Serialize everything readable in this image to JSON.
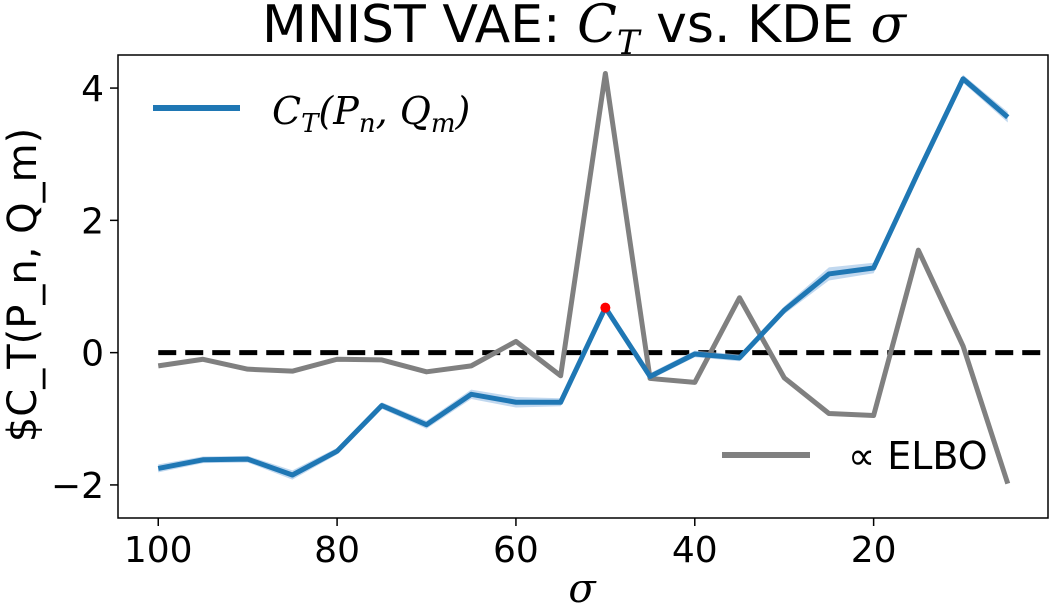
{
  "chart_data": {
    "type": "line",
    "title": "MNIST VAE: C_T vs. KDE σ",
    "title_parts": {
      "prefix": "MNIST VAE: ",
      "ct_main": "C",
      "ct_sub": "T",
      "middle": " vs. KDE ",
      "sigma": "σ"
    },
    "xlabel": "σ",
    "ylabel": "$C_T(P_n, Q_m)",
    "x_reversed": true,
    "xlim": [
      104.5,
      0.5
    ],
    "ylim": [
      -2.5,
      4.5
    ],
    "xticks": [
      100,
      80,
      60,
      40,
      20
    ],
    "xtick_labels": [
      "100",
      "80",
      "60",
      "40",
      "20"
    ],
    "yticks": [
      -2,
      0,
      2,
      4
    ],
    "ytick_labels": [
      "−2",
      "0",
      "2",
      "4"
    ],
    "grid": false,
    "x": [
      100,
      95,
      90,
      85,
      80,
      75,
      70,
      65,
      60,
      55,
      50,
      45,
      40,
      35,
      30,
      25,
      20,
      15,
      10,
      5
    ],
    "series": [
      {
        "name": "C_T(P_n, Q_m)",
        "color": "#1f77b4",
        "band_color": "#a6c8e8",
        "values": [
          -1.75,
          -1.62,
          -1.61,
          -1.85,
          -1.49,
          -0.8,
          -1.09,
          -0.63,
          -0.75,
          -0.75,
          0.68,
          -0.36,
          -0.02,
          -0.08,
          0.64,
          1.19,
          1.28,
          2.73,
          4.14,
          3.56
        ],
        "band": [
          0.06,
          0.05,
          0.05,
          0.07,
          0.05,
          0.05,
          0.06,
          0.07,
          0.08,
          0.06,
          0.06,
          0.05,
          0.05,
          0.05,
          0.06,
          0.1,
          0.08,
          0.05,
          0.06,
          0.08
        ],
        "highlight_index": 10,
        "highlight_color": "#ff0000"
      },
      {
        "name": "∝ ELBO",
        "color": "#808080",
        "values": [
          -0.2,
          -0.1,
          -0.25,
          -0.28,
          -0.1,
          -0.11,
          -0.29,
          -0.2,
          0.17,
          -0.35,
          4.22,
          -0.39,
          -0.45,
          0.83,
          -0.38,
          -0.92,
          -0.95,
          1.55,
          0.1,
          -1.98
        ]
      }
    ],
    "reference_line": {
      "y": 0,
      "style": "dashed",
      "color": "#000000"
    },
    "legends": [
      {
        "placement": "top-left",
        "label_main": "C",
        "label_sub": "T",
        "label_args": "(P",
        "label_n": "n",
        "label_sep": ", Q",
        "label_m": "m",
        "label_close": ")"
      },
      {
        "placement": "bottom-right",
        "label": "∝  ELBO"
      }
    ]
  }
}
